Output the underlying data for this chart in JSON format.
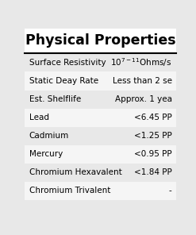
{
  "title": "Physical Properties",
  "rows": [
    [
      "Surface Resistivity",
      "10$^{7-11}$Ohms/s"
    ],
    [
      "Static Deay Rate",
      "Less than 2 se"
    ],
    [
      "Est. Shelflife",
      "Approx. 1 yea"
    ],
    [
      "Lead",
      "<6.45 PP"
    ],
    [
      "Cadmium",
      "<1.25 PP"
    ],
    [
      "Mercury",
      "<0.95 PP"
    ],
    [
      "Chromium Hexavalent",
      "<1.84 PP"
    ],
    [
      "Chromium Trivalent",
      "-"
    ]
  ],
  "bg_color": "#e8e8e8",
  "title_bg": "#ffffff",
  "title_color": "#000000",
  "font_size": 7.5,
  "title_font_size": 12.5
}
